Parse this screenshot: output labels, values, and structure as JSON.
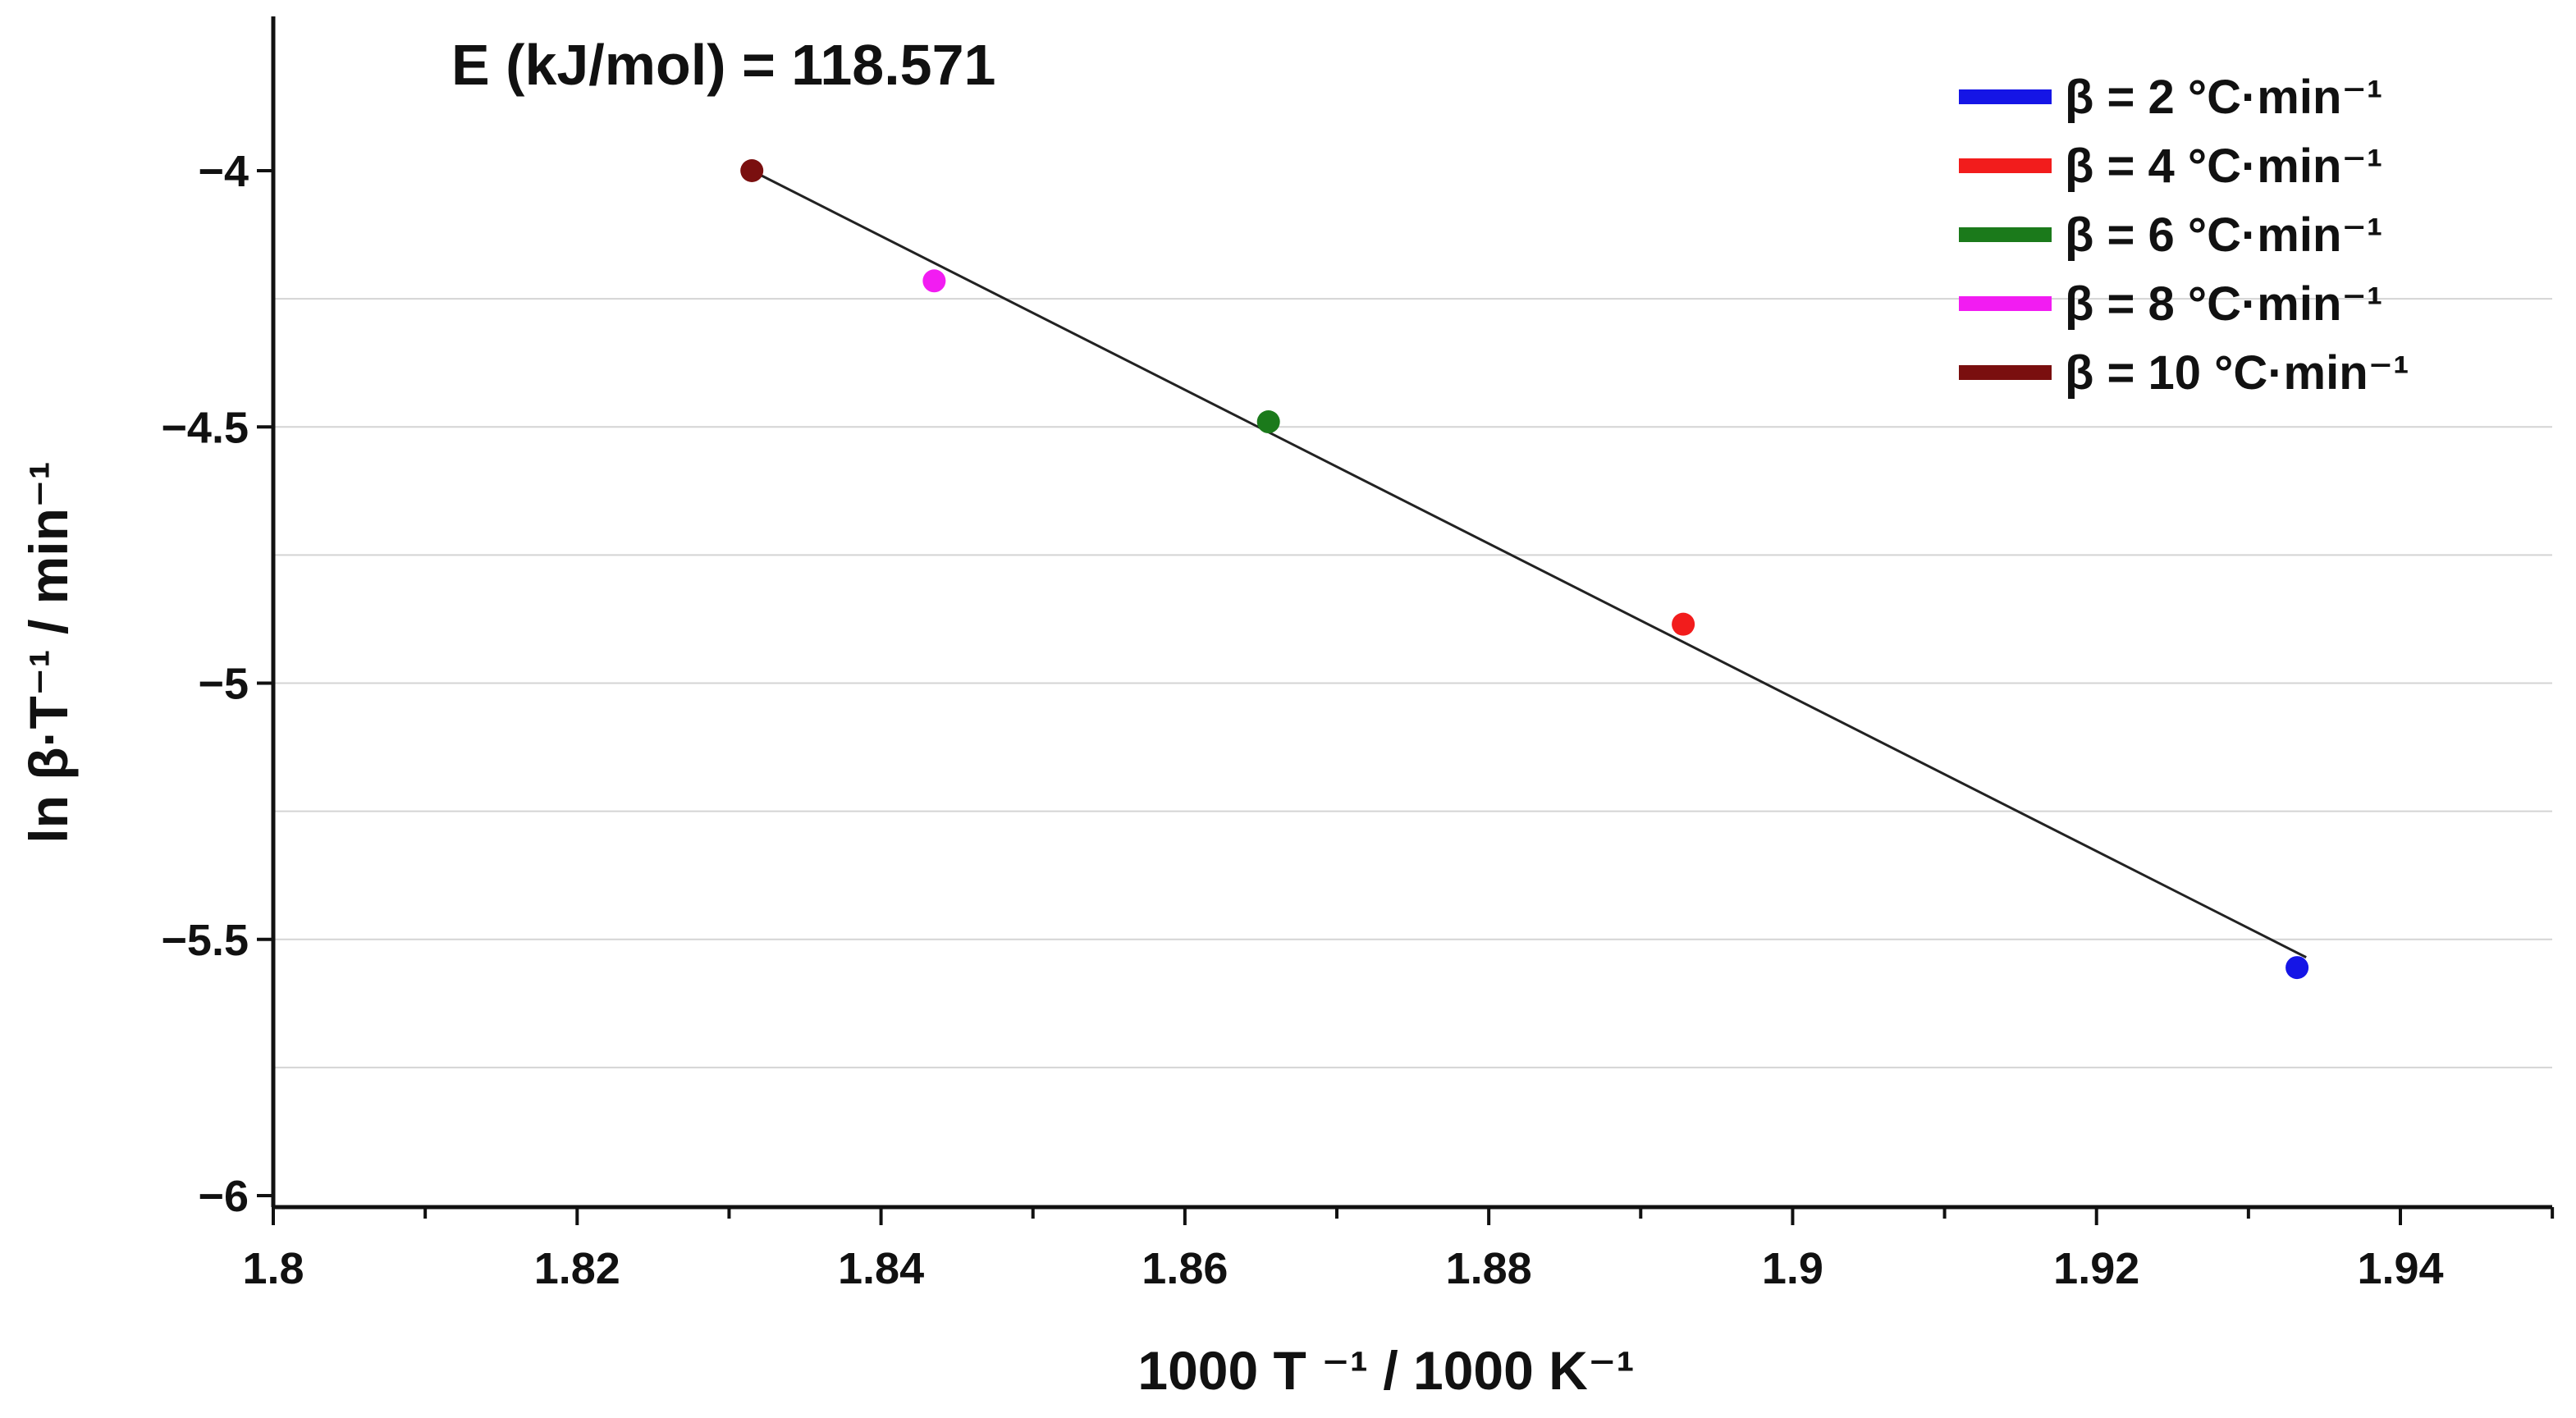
{
  "chart_data": {
    "type": "scatter",
    "title": "",
    "xlabel": "1000 T ⁻¹ / 1000 K⁻¹",
    "ylabel": "ln β·T⁻¹ / min⁻¹",
    "xlim": [
      1.8,
      1.95
    ],
    "ylim": [
      -6.0,
      -3.7
    ],
    "x_ticks": [
      1.8,
      1.82,
      1.84,
      1.86,
      1.88,
      1.9,
      1.92,
      1.94
    ],
    "x_tick_labels": [
      "1.8",
      "1.82",
      "1.84",
      "1.86",
      "1.88",
      "1.9",
      "1.92",
      "1.94"
    ],
    "y_ticks": [
      -4.0,
      -4.5,
      -5.0,
      -5.5,
      -6.0
    ],
    "y_tick_labels": [
      "−4",
      "−4.5",
      "−5",
      "−5.5",
      "−6"
    ],
    "y_gridlines": [
      -4.25,
      -4.5,
      -4.75,
      -5.0,
      -5.25,
      -5.5,
      -5.75
    ],
    "annotation": "E (kJ/mol) = 118.571",
    "legend_position": "top-right",
    "series": [
      {
        "name": "β = 2 °C·min⁻¹",
        "color": "#1515e6",
        "x": 1.9332,
        "y": -5.555
      },
      {
        "name": "β = 4 °C·min⁻¹",
        "color": "#f21c1c",
        "x": 1.8928,
        "y": -4.885
      },
      {
        "name": "β = 6 °C·min⁻¹",
        "color": "#1b7a1b",
        "x": 1.8655,
        "y": -4.49
      },
      {
        "name": "β = 8 °C·min⁻¹",
        "color": "#f21cf2",
        "x": 1.8435,
        "y": -4.215
      },
      {
        "name": "β = 10 °C·min⁻¹",
        "color": "#7a0f0f",
        "x": 1.8315,
        "y": -4.0
      }
    ],
    "fit_line": {
      "x": [
        1.8315,
        1.9338
      ],
      "y": [
        -4.0,
        -5.535
      ],
      "color": "#222222"
    }
  }
}
